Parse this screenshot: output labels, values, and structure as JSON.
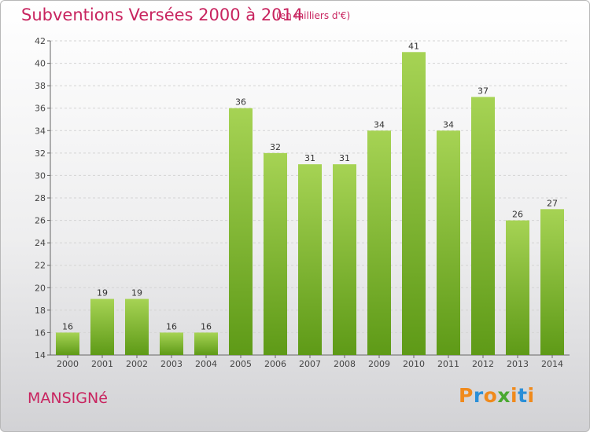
{
  "header": {
    "title": "Subventions Versées 2000 à 2014",
    "unit": "(en milliers d'€)"
  },
  "footer": {
    "place": "MANSIGNé",
    "logo_text": "Proxiti"
  },
  "colors": {
    "title": "#c8245f",
    "bar_top": "#a6d354",
    "bar_bottom": "#5e9a17",
    "logo_letters": [
      "#f08a1c",
      "#2a8fd8",
      "#f08a1c",
      "#4aa830",
      "#f08a1c",
      "#2a8fd8",
      "#f08a1c"
    ]
  },
  "chart_data": {
    "type": "bar",
    "title": "Subventions Versées 2000 à 2014",
    "categories": [
      "2000",
      "2001",
      "2002",
      "2003",
      "2004",
      "2005",
      "2006",
      "2007",
      "2008",
      "2009",
      "2010",
      "2011",
      "2012",
      "2013",
      "2014"
    ],
    "values": [
      16,
      19,
      19,
      16,
      16,
      36,
      32,
      31,
      31,
      34,
      41,
      34,
      37,
      26,
      27
    ],
    "ylim": [
      14,
      42
    ],
    "yticks": [
      14,
      16,
      18,
      20,
      22,
      24,
      26,
      28,
      30,
      32,
      34,
      36,
      38,
      40,
      42
    ],
    "grid": true,
    "data_labels": true
  }
}
